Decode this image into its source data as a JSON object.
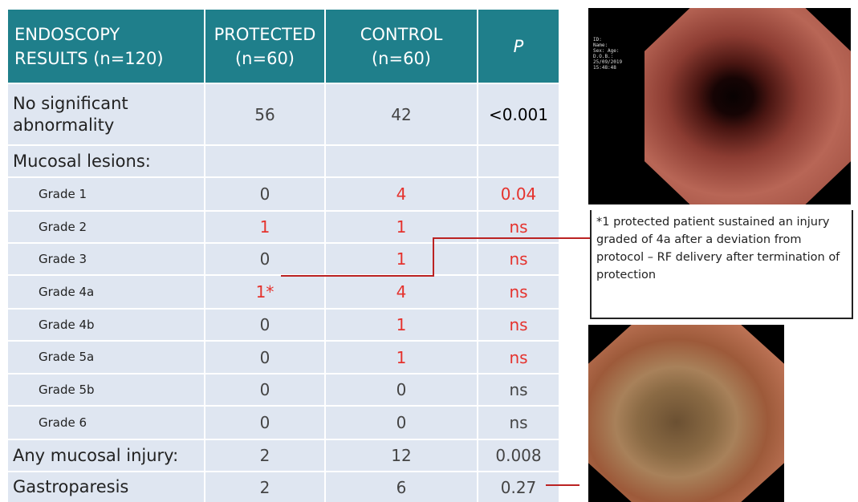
{
  "table": {
    "header": [
      [
        "ENDOSCOPY",
        "RESULTS (n=120)"
      ],
      [
        "PROTECTED",
        "(n=60)"
      ],
      [
        "CONTROL",
        "(n=60)"
      ],
      [
        "P"
      ]
    ],
    "highlight_color": "#e5322d",
    "rows": [
      {
        "cells": [
          "No significant abnormality",
          "56",
          "42",
          "<0.001"
        ],
        "height": 77,
        "kind": "main",
        "red": [],
        "strong": [
          3
        ]
      },
      {
        "cells": [
          "Mucosal lesions:",
          "",
          "",
          ""
        ],
        "height": 40,
        "kind": "main",
        "red": [],
        "strong": []
      },
      {
        "cells": [
          "Grade 1",
          "0",
          "4",
          "0.04"
        ],
        "height": 42,
        "kind": "grade",
        "red": [
          2,
          3
        ],
        "strong": []
      },
      {
        "cells": [
          "Grade 2",
          "1",
          "1",
          "ns"
        ],
        "height": 40,
        "kind": "grade",
        "red": [
          1,
          2,
          3
        ],
        "strong": []
      },
      {
        "cells": [
          "Grade 3",
          "0",
          "1",
          "ns"
        ],
        "height": 40,
        "kind": "grade",
        "red": [
          2,
          3
        ],
        "strong": []
      },
      {
        "cells": [
          "Grade 4a",
          "1*",
          "4",
          "ns"
        ],
        "height": 42,
        "kind": "grade",
        "red": [
          1,
          2,
          3
        ],
        "strong": []
      },
      {
        "cells": [
          "Grade 4b",
          "0",
          "1",
          "ns"
        ],
        "height": 40,
        "kind": "grade",
        "red": [
          2,
          3
        ],
        "strong": []
      },
      {
        "cells": [
          "Grade 5a",
          "0",
          "1",
          "ns"
        ],
        "height": 41,
        "kind": "grade",
        "red": [
          2,
          3
        ],
        "strong": []
      },
      {
        "cells": [
          "Grade 5b",
          "0",
          "0",
          "ns"
        ],
        "height": 40,
        "kind": "grade",
        "red": [],
        "strong": []
      },
      {
        "cells": [
          "Grade 6",
          "0",
          "0",
          "ns"
        ],
        "height": 42,
        "kind": "grade",
        "red": [],
        "strong": []
      },
      {
        "cells": [
          "Any mucosal injury:",
          "2",
          "12",
          "0.008"
        ],
        "height": 40,
        "kind": "main",
        "red": [],
        "strong": []
      },
      {
        "cells": [
          "Gastroparesis",
          "2",
          "6",
          "0.27"
        ],
        "height": 38,
        "kind": "main",
        "red": [],
        "strong": []
      }
    ]
  },
  "images": {
    "overlay": [
      "ID:",
      "Name:",
      "Sex:   Age:",
      "D.O.B.:",
      "25/09/2019",
      "15:48:48"
    ]
  },
  "caption": "*1 protected patient sustained an injury graded of 4a after a deviation from protocol – RF delivery after termination of protection"
}
